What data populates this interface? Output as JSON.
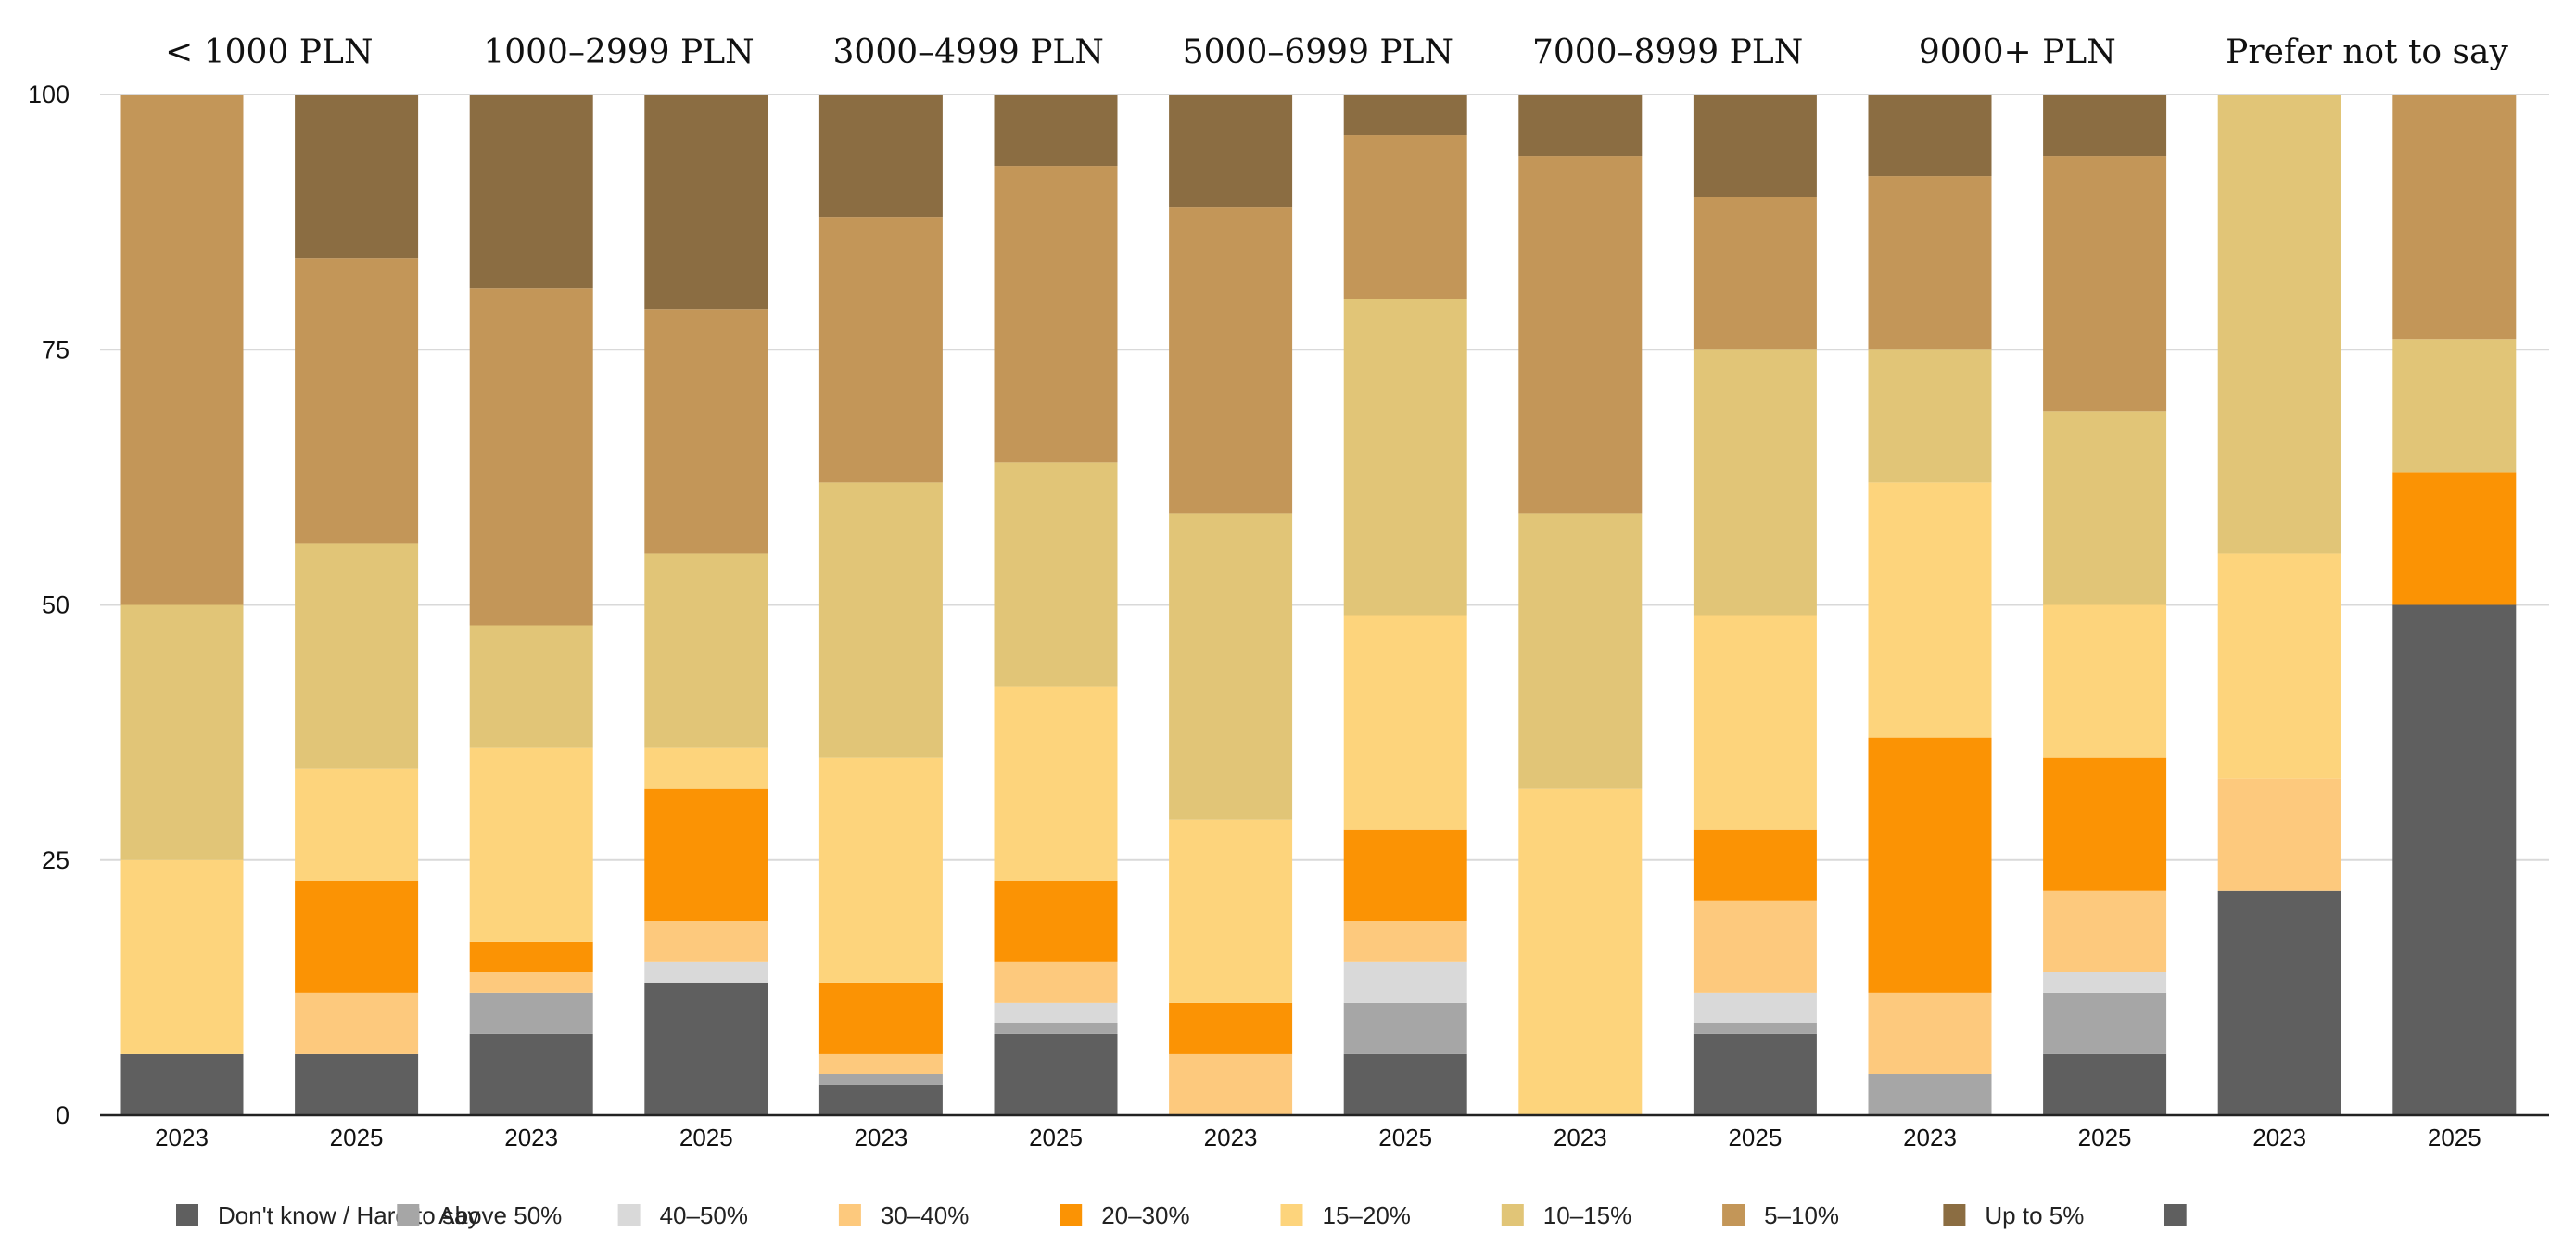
{
  "chart_data": {
    "type": "bar",
    "stacked": true,
    "title": "",
    "xlabel": "",
    "ylabel": "",
    "ylim": [
      0,
      100
    ],
    "yticks": [
      "0",
      "25",
      "50",
      "75",
      "100"
    ],
    "groups": [
      "< 1000 PLN",
      "1000–2999 PLN",
      "3000–4999 PLN",
      "5000–6999 PLN",
      "7000–8999 PLN",
      "9000+ PLN",
      "Prefer not to say"
    ],
    "years": [
      "2023",
      "2025"
    ],
    "categories": [
      "< 1000 PLN 2023",
      "< 1000 PLN 2025",
      "1000–2999 PLN 2023",
      "1000–2999 PLN 2025",
      "3000–4999 PLN 2023",
      "3000–4999 PLN 2025",
      "5000–6999 PLN 2023",
      "5000–6999 PLN 2025",
      "7000–8999 PLN 2023",
      "7000–8999 PLN 2025",
      "9000+ PLN 2023",
      "9000+ PLN 2025",
      "Prefer not to say 2023",
      "Prefer not to say 2025"
    ],
    "series": [
      {
        "name": "Don't know / Hard to say",
        "color": "#5f5f5f",
        "values": [
          6,
          6,
          8,
          13,
          3,
          8,
          0,
          6,
          0,
          8,
          0,
          6,
          22,
          50
        ]
      },
      {
        "name": "Above 50%",
        "color": "#a6a6a6",
        "values": [
          0,
          0,
          4,
          0,
          1,
          1,
          0,
          5,
          0,
          1,
          4,
          6,
          0,
          0
        ]
      },
      {
        "name": "40–50%",
        "color": "#d9d9d9",
        "values": [
          0,
          0,
          0,
          2,
          0,
          2,
          0,
          4,
          0,
          3,
          0,
          2,
          0,
          0
        ]
      },
      {
        "name": "30–40%",
        "color": "#fdc97d",
        "values": [
          0,
          6,
          2,
          4,
          2,
          4,
          6,
          4,
          0,
          9,
          8,
          8,
          11,
          0
        ]
      },
      {
        "name": "20–30%",
        "color": "#fb9304",
        "values": [
          0,
          11,
          3,
          13,
          7,
          8,
          5,
          9,
          0,
          7,
          25,
          13,
          0,
          13
        ]
      },
      {
        "name": "15–20%",
        "color": "#fdd47c",
        "values": [
          19,
          11,
          19,
          4,
          22,
          19,
          18,
          21,
          32,
          21,
          25,
          15,
          22,
          0
        ]
      },
      {
        "name": "10–15%",
        "color": "#e1c577",
        "values": [
          25,
          22,
          12,
          19,
          27,
          22,
          30,
          31,
          27,
          26,
          13,
          19,
          45,
          13
        ]
      },
      {
        "name": "5–10%",
        "color": "#c39658",
        "values": [
          50,
          28,
          33,
          24,
          26,
          29,
          30,
          16,
          35,
          15,
          17,
          25,
          0,
          24
        ]
      },
      {
        "name": "Up to 5%",
        "color": "#8b6d42",
        "values": [
          0,
          16,
          19,
          21,
          12,
          7,
          11,
          4,
          6,
          10,
          8,
          6,
          0,
          0
        ]
      }
    ],
    "extra_legend": {
      "name": "",
      "color": "#5f5f5f"
    }
  }
}
